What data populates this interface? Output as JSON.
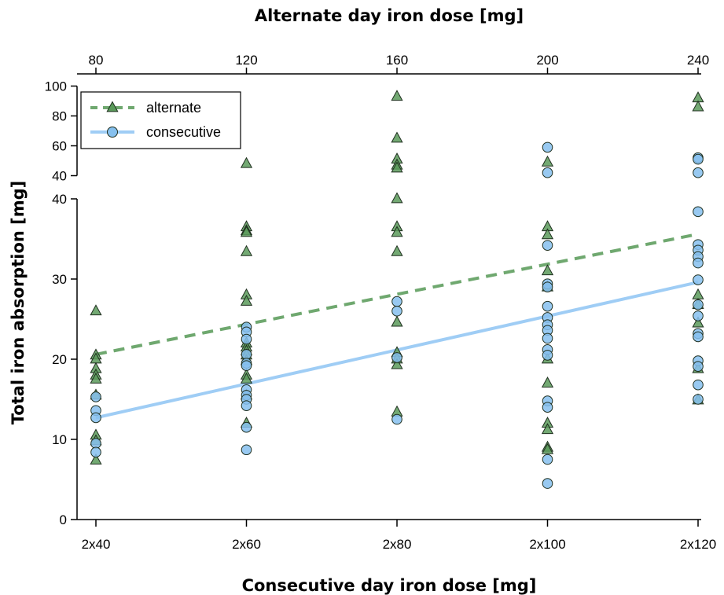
{
  "chart_data": {
    "type": "scatter",
    "title": "",
    "xlabel_bottom": "Consecutive day iron dose [mg]",
    "xlabel_top": "Alternate day iron dose [mg]",
    "ylabel": "Total iron absorption [mg]",
    "x_categories_bottom": [
      "2x40",
      "2x60",
      "2x80",
      "2x100",
      "2x120"
    ],
    "x_categories_top": [
      "80",
      "120",
      "160",
      "200",
      "240"
    ],
    "y_axis_broken": true,
    "y_lower_range": [
      0,
      40
    ],
    "y_lower_ticks": [
      "0",
      "10",
      "20",
      "30",
      "40"
    ],
    "y_upper_range": [
      40,
      100
    ],
    "y_upper_ticks": [
      "40",
      "60",
      "80",
      "100"
    ],
    "legend_position": "top-left",
    "colors": {
      "alternate_fill": "#5a9a5a",
      "alternate_line": "#6fa86f",
      "consecutive_fill": "#86c0ee",
      "consecutive_line": "#9fcdf5",
      "marker_stroke": "#1f2f1f"
    },
    "series": [
      {
        "name": "alternate",
        "marker": "triangle",
        "line_style": "dashed",
        "fit_line": [
          [
            0,
            20.6
          ],
          [
            4,
            35.6
          ]
        ],
        "points": [
          [
            0,
            26
          ],
          [
            0,
            20.5
          ],
          [
            0,
            20
          ],
          [
            0,
            18.8
          ],
          [
            0,
            18
          ],
          [
            0,
            17.5
          ],
          [
            0,
            15.5
          ],
          [
            0,
            10.5
          ],
          [
            0,
            9.8
          ],
          [
            0,
            7.4
          ],
          [
            1,
            48
          ],
          [
            1,
            36.5
          ],
          [
            1,
            36
          ],
          [
            1,
            35.8
          ],
          [
            1,
            33.4
          ],
          [
            1,
            28
          ],
          [
            1,
            27.2
          ],
          [
            1,
            22
          ],
          [
            1,
            21.5
          ],
          [
            1,
            21
          ],
          [
            1,
            20.5
          ],
          [
            1,
            19.8
          ],
          [
            1,
            18
          ],
          [
            1,
            17.5
          ],
          [
            1,
            15.5
          ],
          [
            1,
            12
          ],
          [
            2,
            93
          ],
          [
            2,
            65
          ],
          [
            2,
            51
          ],
          [
            2,
            47
          ],
          [
            2,
            45
          ],
          [
            2,
            40
          ],
          [
            2,
            36.5
          ],
          [
            2,
            35.8
          ],
          [
            2,
            33.4
          ],
          [
            2,
            24.6
          ],
          [
            2,
            20.8
          ],
          [
            2,
            20
          ],
          [
            2,
            19.3
          ],
          [
            2,
            13.4
          ],
          [
            3,
            49
          ],
          [
            3,
            36.5
          ],
          [
            3,
            35.5
          ],
          [
            3,
            31
          ],
          [
            3,
            29
          ],
          [
            3,
            20
          ],
          [
            3,
            17
          ],
          [
            3,
            12
          ],
          [
            3,
            11.2
          ],
          [
            3,
            9
          ],
          [
            3,
            8.7
          ],
          [
            4,
            92
          ],
          [
            4,
            86
          ],
          [
            4,
            28
          ],
          [
            4,
            26.8
          ],
          [
            4,
            24.5
          ],
          [
            4,
            18.8
          ],
          [
            4,
            14.9
          ]
        ]
      },
      {
        "name": "consecutive",
        "marker": "circle",
        "line_style": "solid",
        "fit_line": [
          [
            0,
            12.7
          ],
          [
            4,
            29.6
          ]
        ],
        "points": [
          [
            0,
            15.3
          ],
          [
            0,
            13.6
          ],
          [
            0,
            12.7
          ],
          [
            0,
            9.5
          ],
          [
            0,
            8.4
          ],
          [
            1,
            24
          ],
          [
            1,
            23.4
          ],
          [
            1,
            22.5
          ],
          [
            1,
            20.6
          ],
          [
            1,
            19.5
          ],
          [
            1,
            19.2
          ],
          [
            1,
            16.2
          ],
          [
            1,
            15.5
          ],
          [
            1,
            15
          ],
          [
            1,
            14.2
          ],
          [
            1,
            11.5
          ],
          [
            1,
            8.7
          ],
          [
            2,
            27.2
          ],
          [
            2,
            26
          ],
          [
            2,
            20.2
          ],
          [
            2,
            12.5
          ],
          [
            3,
            59
          ],
          [
            3,
            42
          ],
          [
            3,
            34.2
          ],
          [
            3,
            29.4
          ],
          [
            3,
            29
          ],
          [
            3,
            26.6
          ],
          [
            3,
            25.2
          ],
          [
            3,
            24.3
          ],
          [
            3,
            23.6
          ],
          [
            3,
            22.6
          ],
          [
            3,
            21.2
          ],
          [
            3,
            20.5
          ],
          [
            3,
            14.8
          ],
          [
            3,
            14
          ],
          [
            3,
            7.5
          ],
          [
            3,
            4.5
          ],
          [
            4,
            52
          ],
          [
            4,
            51
          ],
          [
            4,
            42
          ],
          [
            4,
            38.4
          ],
          [
            4,
            34.3
          ],
          [
            4,
            33.6
          ],
          [
            4,
            32.8
          ],
          [
            4,
            32
          ],
          [
            4,
            29.9
          ],
          [
            4,
            26.8
          ],
          [
            4,
            25.4
          ],
          [
            4,
            23.2
          ],
          [
            4,
            22.8
          ],
          [
            4,
            19.8
          ],
          [
            4,
            19.1
          ],
          [
            4,
            16.8
          ],
          [
            4,
            15
          ]
        ]
      }
    ]
  }
}
